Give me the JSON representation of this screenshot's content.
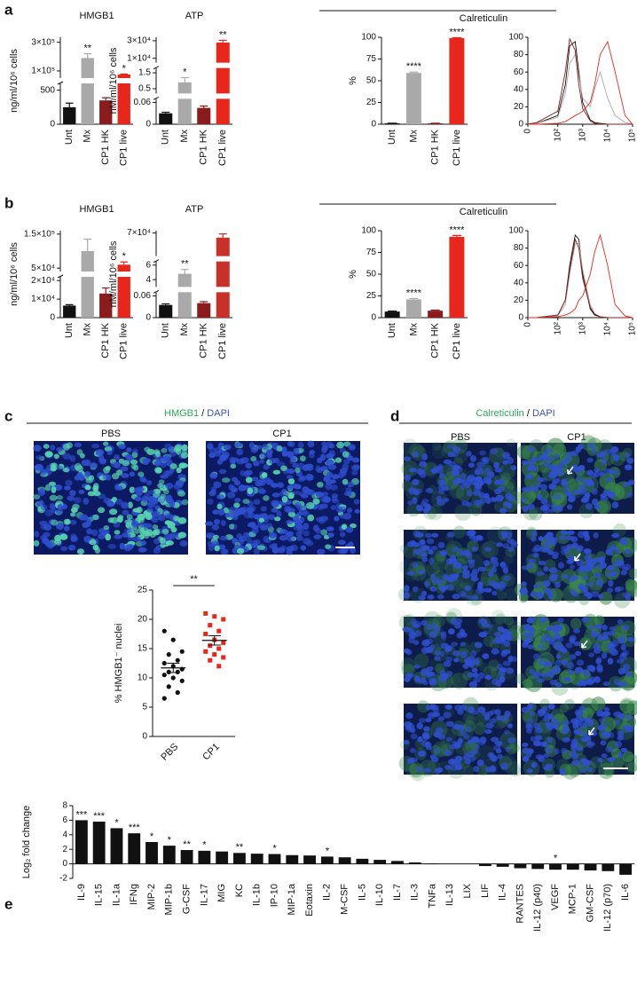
{
  "panel_labels": [
    "a",
    "b",
    "c",
    "d",
    "e"
  ],
  "chart_data": [
    {
      "type": "bar",
      "title": "HMGB1",
      "ylabel": "ng/ml/10⁶ cells",
      "categories": [
        "Unt",
        "Mx",
        "CP1 HK",
        "CP1 live"
      ],
      "colors": [
        "#111111",
        "#a9a9a9",
        "#8b1c1c",
        "#e8261c"
      ],
      "values": [
        250,
        190000,
        350,
        75000
      ],
      "errors": [
        60,
        30000,
        40,
        3000
      ],
      "annotations": [
        null,
        "**",
        null,
        "*"
      ],
      "ysegments": [
        [
          0,
          600
        ],
        [
          50000,
          335000
        ]
      ],
      "yticks": [
        0,
        500,
        {
          "value": 100000,
          "label": "1×10⁵"
        },
        {
          "value": 300000,
          "label": "3×10⁵"
        }
      ]
    },
    {
      "type": "bar",
      "title": "ATP",
      "ylabel": "nM/ml/10⁶ cells",
      "categories": [
        "Unt",
        "Mx",
        "CP1 HK",
        "CP1 live"
      ],
      "colors": [
        "#111111",
        "#a9a9a9",
        "#8b1c1c",
        "#e8261c"
      ],
      "values": [
        0.03,
        0.9,
        0.045,
        28000
      ],
      "errors": [
        0.003,
        0.3,
        0.005,
        2500
      ],
      "annotations": [
        null,
        "*",
        null,
        "**"
      ],
      "ysegments": [
        [
          0,
          0.07
        ],
        [
          0.2,
          1.8
        ],
        [
          5000,
          34000
        ]
      ],
      "yticks": [
        0,
        0.06,
        0.5,
        1.5,
        {
          "value": 10000,
          "label": "1×10⁴"
        },
        {
          "value": 30000,
          "label": "3×10⁴"
        }
      ]
    },
    {
      "type": "bar",
      "header": "Calreticulin",
      "ylabel": "%",
      "categories": [
        "Unt",
        "Mx",
        "CP1 HK",
        "CP1 live"
      ],
      "colors": [
        "#111111",
        "#a9a9a9",
        "#8b1c1c",
        "#e8261c"
      ],
      "values": [
        1,
        59,
        1,
        99
      ],
      "errors": [
        0.2,
        1,
        0.2,
        0.5
      ],
      "annotations": [
        null,
        "****",
        null,
        "****"
      ],
      "ylim": [
        0,
        100
      ],
      "yticks": [
        0,
        25,
        50,
        75,
        100
      ]
    },
    {
      "type": "line",
      "xscale": "biexponential",
      "x": [
        0,
        30,
        100,
        200,
        300,
        500,
        700,
        1000,
        2000,
        3000,
        5000,
        10000,
        20000,
        50000,
        100000
      ],
      "xlim": [
        0,
        100000
      ],
      "ylim": [
        0,
        100
      ],
      "yticks": [
        0,
        20,
        40,
        60,
        80,
        100
      ],
      "xticks": [
        0,
        {
          "value": 100,
          "label": "10²"
        },
        {
          "value": 1000,
          "label": "10³"
        },
        {
          "value": 10000,
          "label": "10⁴"
        },
        {
          "value": 100000,
          "label": "10⁵"
        }
      ],
      "series": [
        {
          "color": "#111111",
          "values": [
            0,
            1,
            10,
            45,
            90,
            95,
            60,
            25,
            5,
            2,
            1,
            0,
            0,
            0,
            0
          ]
        },
        {
          "color": "#a9a9a9",
          "values": [
            0,
            1,
            8,
            35,
            70,
            80,
            55,
            30,
            20,
            40,
            60,
            30,
            10,
            2,
            0
          ]
        },
        {
          "color": "#8b1c1c",
          "values": [
            0,
            2,
            15,
            60,
            98,
            85,
            45,
            18,
            4,
            1,
            0,
            0,
            0,
            0,
            0
          ]
        },
        {
          "color": "#e8261c",
          "values": [
            0,
            0,
            1,
            3,
            6,
            10,
            12,
            15,
            25,
            45,
            80,
            95,
            60,
            10,
            0
          ]
        }
      ]
    },
    {
      "type": "bar",
      "title": "HMGB1",
      "ylabel": "ng/ml/10⁶ cells",
      "categories": [
        "Unt",
        "Mx",
        "CP1 HK",
        "CP1 live"
      ],
      "colors": [
        "#111111",
        "#a9a9a9",
        "#8b1c1c",
        "#e8261c"
      ],
      "values": [
        6500,
        100000,
        13000,
        60000
      ],
      "errors": [
        500,
        35000,
        3000,
        8000
      ],
      "annotations": [
        null,
        null,
        null,
        "*"
      ],
      "ysegments": [
        [
          0,
          22000
        ],
        [
          40000,
          160000
        ]
      ],
      "yticks": [
        0,
        {
          "value": 10000,
          "label": "1×10⁴"
        },
        {
          "value": 20000,
          "label": "2×10⁴"
        },
        {
          "value": 50000,
          "label": "5×10⁴"
        },
        {
          "value": 150000,
          "label": "1.5×10⁵"
        }
      ]
    },
    {
      "type": "bar",
      "title": "ATP",
      "ylabel": "nM/ml/10⁶ cells",
      "categories": [
        "Unt",
        "Mx",
        "CP1 HK",
        "CP1 live"
      ],
      "colors": [
        "#111111",
        "#a9a9a9",
        "#8b1c1c",
        "#c8302a"
      ],
      "values": [
        0.035,
        4.8,
        0.04,
        60000
      ],
      "errors": [
        0.003,
        0.6,
        0.004,
        8000
      ],
      "annotations": [
        null,
        "**",
        null,
        null
      ],
      "ysegments": [
        [
          0,
          0.07
        ],
        [
          3,
          6.5
        ],
        [
          20000,
          75000
        ]
      ],
      "yticks": [
        0,
        0.06,
        4,
        6,
        {
          "value": 70000,
          "label": "7×10⁴"
        }
      ]
    },
    {
      "type": "bar",
      "header": "Calreticulin",
      "ylabel": "%",
      "categories": [
        "Unt",
        "Mx",
        "CP1 HK",
        "CP1 live"
      ],
      "colors": [
        "#111111",
        "#a9a9a9",
        "#8b1c1c",
        "#e8261c"
      ],
      "values": [
        7,
        21,
        8,
        93
      ],
      "errors": [
        0.5,
        1,
        0.7,
        1.5
      ],
      "annotations": [
        null,
        "****",
        null,
        "****"
      ],
      "ylim": [
        0,
        100
      ],
      "yticks": [
        0,
        25,
        50,
        75,
        100
      ]
    },
    {
      "type": "line",
      "xscale": "biexponential",
      "x": [
        0,
        30,
        100,
        200,
        300,
        500,
        700,
        1000,
        2000,
        3000,
        5000,
        10000,
        20000,
        50000,
        100000
      ],
      "xlim": [
        0,
        100000
      ],
      "ylim": [
        0,
        100
      ],
      "yticks": [
        0,
        20,
        40,
        60,
        80,
        100
      ],
      "xticks": [
        0,
        {
          "value": 100,
          "label": "10²"
        },
        {
          "value": 1000,
          "label": "10³"
        },
        {
          "value": 10000,
          "label": "10⁴"
        },
        {
          "value": 100000,
          "label": "10⁵"
        }
      ],
      "series": [
        {
          "color": "#111111",
          "values": [
            0,
            0,
            3,
            20,
            60,
            95,
            90,
            50,
            10,
            3,
            1,
            0,
            0,
            0,
            0
          ]
        },
        {
          "color": "#a9a9a9",
          "values": [
            0,
            0,
            2,
            15,
            50,
            85,
            85,
            55,
            15,
            5,
            1,
            0,
            0,
            0,
            0
          ]
        },
        {
          "color": "#8b1c1c",
          "values": [
            0,
            0,
            3,
            20,
            55,
            90,
            80,
            45,
            12,
            4,
            1,
            0,
            0,
            0,
            0
          ]
        },
        {
          "color": "#e8261c",
          "values": [
            0,
            0,
            1,
            3,
            5,
            10,
            20,
            25,
            50,
            75,
            95,
            60,
            15,
            2,
            0
          ]
        }
      ]
    },
    {
      "type": "scatter",
      "ylabel": "% HMGB1⁻ nuclei",
      "categories": [
        "PBS",
        "CP1"
      ],
      "series": [
        {
          "color": "#111111",
          "values": [
            18,
            16.5,
            14.5,
            14,
            13,
            12.5,
            12,
            11.5,
            11,
            11,
            10.5,
            10,
            9.5,
            8.5,
            7.5,
            6.5
          ]
        },
        {
          "color": "#e8261c",
          "values": [
            21,
            20.5,
            20,
            19,
            18,
            17.5,
            16.5,
            16,
            15.5,
            15,
            14.5,
            14,
            13.5,
            13,
            12
          ]
        }
      ],
      "means": [
        11.7,
        16.4
      ],
      "sems": [
        0.8,
        0.8
      ],
      "annotation": "**",
      "ylim": [
        0,
        25
      ],
      "yticks": [
        0,
        5,
        10,
        15,
        20,
        25
      ]
    },
    {
      "type": "bar",
      "ylabel": "Log₂ fold change",
      "color": "#111111",
      "categories": [
        "IL-9",
        "IL-15",
        "IL-1a",
        "IFNg",
        "MIP-2",
        "MIP-1b",
        "G-CSF",
        "IL-17",
        "MIG",
        "KC",
        "IL-1b",
        "IP-10",
        "MIP-1a",
        "Eotaxin",
        "IL-2",
        "M-CSF",
        "IL-5",
        "IL-10",
        "IL-7",
        "IL-3",
        "TNFa",
        "IL-13",
        "LIX",
        "LIF",
        "IL-4",
        "RANTES",
        "IL-12 (p40)",
        "VEGF",
        "MCP-1",
        "GM-CSF",
        "IL-12 (p70)",
        "IL-6"
      ],
      "values": [
        6.0,
        5.8,
        4.9,
        4.2,
        3.0,
        2.5,
        1.9,
        1.8,
        1.7,
        1.5,
        1.4,
        1.35,
        1.2,
        1.15,
        1.0,
        0.9,
        0.7,
        0.55,
        0.4,
        0.2,
        0.05,
        0,
        0,
        -0.3,
        -0.4,
        -0.6,
        -0.7,
        -0.8,
        -0.8,
        -0.9,
        -1.0,
        -1.5
      ],
      "annotations": [
        "***",
        "***",
        "*",
        "***",
        "*",
        "*",
        "**",
        "*",
        null,
        "**",
        null,
        "*",
        null,
        null,
        "*",
        null,
        null,
        null,
        null,
        null,
        null,
        null,
        null,
        null,
        null,
        null,
        null,
        "*",
        null,
        null,
        null,
        null
      ],
      "ylim": [
        -2,
        8
      ],
      "yticks": [
        -2,
        0,
        2,
        4,
        6,
        8
      ]
    }
  ],
  "images": [
    {
      "title": [
        "HMGB1",
        " / ",
        "DAPI"
      ],
      "columns": [
        "PBS",
        "CP1"
      ]
    },
    {
      "title": [
        "Calreticulin",
        " / ",
        "DAPI"
      ],
      "columns": [
        "PBS",
        "CP1"
      ]
    }
  ]
}
